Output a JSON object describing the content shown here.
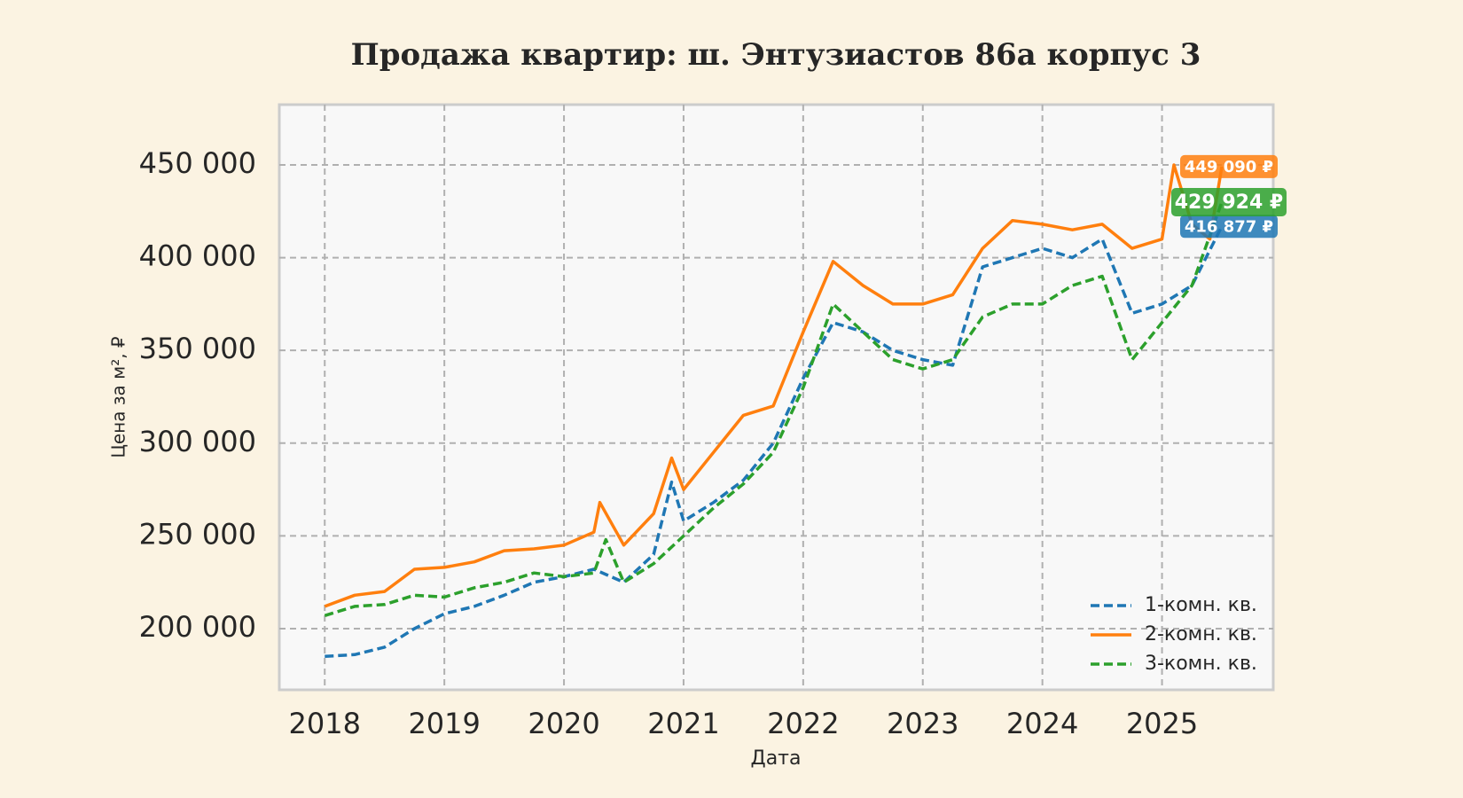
{
  "chart_data": {
    "type": "line",
    "title": "Продажа квартир: ш. Энтузиастов 86а корпус 3",
    "x_label": "Дата",
    "y_label": "Цена за м², ₽",
    "xlim": [
      2017.62,
      2025.93
    ],
    "xticks": [
      2018,
      2019,
      2020,
      2021,
      2022,
      2023,
      2024,
      2025
    ],
    "ylim": [
      167000,
      482500
    ],
    "yticks": [
      {
        "value": 200000,
        "label": "200 000"
      },
      {
        "value": 250000,
        "label": "250 000"
      },
      {
        "value": 300000,
        "label": "300 000"
      },
      {
        "value": 350000,
        "label": "350 000"
      },
      {
        "value": 400000,
        "label": "400 000"
      },
      {
        "value": 450000,
        "label": "450 000"
      }
    ],
    "grid": true,
    "legend": "lower right",
    "series": [
      {
        "name": "1-комн. кв.",
        "color": "#1f77b4",
        "linestyle": "dashed",
        "x": [
          2018,
          2018.25,
          2018.5,
          2018.75,
          2019,
          2019.25,
          2019.5,
          2019.75,
          2020,
          2020.25,
          2020.5,
          2020.75,
          2020.9,
          2021,
          2021.25,
          2021.5,
          2021.75,
          2022,
          2022.25,
          2022.5,
          2022.75,
          2023,
          2023.25,
          2023.5,
          2023.75,
          2024,
          2024.25,
          2024.5,
          2024.75,
          2025,
          2025.25,
          2025.5
        ],
        "values": [
          185000,
          186000,
          190000,
          200000,
          208000,
          212000,
          218000,
          225000,
          228000,
          232000,
          225000,
          240000,
          279000,
          258000,
          268000,
          280000,
          300000,
          335000,
          365000,
          360000,
          350000,
          345000,
          342000,
          395000,
          400000,
          405000,
          400000,
          410000,
          370000,
          375000,
          385000,
          416877
        ],
        "end_label": "416 877 ₽",
        "end_value": 416877
      },
      {
        "name": "2-комн. кв.",
        "color": "#ff7f0e",
        "linestyle": "solid",
        "x": [
          2018,
          2018.25,
          2018.5,
          2018.75,
          2019,
          2019.25,
          2019.5,
          2019.75,
          2020,
          2020.25,
          2020.3,
          2020.5,
          2020.75,
          2020.9,
          2021,
          2021.25,
          2021.5,
          2021.75,
          2022,
          2022.25,
          2022.5,
          2022.75,
          2023,
          2023.25,
          2023.5,
          2023.75,
          2024,
          2024.25,
          2024.5,
          2024.75,
          2025,
          2025.1,
          2025.25,
          2025.4,
          2025.5
        ],
        "values": [
          212000,
          218000,
          220000,
          232000,
          233000,
          236000,
          242000,
          243000,
          245000,
          252000,
          268000,
          245000,
          262000,
          292000,
          275000,
          295000,
          315000,
          320000,
          360000,
          398000,
          385000,
          375000,
          375000,
          380000,
          405000,
          420000,
          418000,
          415000,
          418000,
          405000,
          410000,
          450000,
          418000,
          410000,
          449090
        ],
        "end_label": "449 090 ₽",
        "end_value": 449090
      },
      {
        "name": "3-комн. кв.",
        "color": "#2ca02c",
        "linestyle": "dashed",
        "x": [
          2018,
          2018.25,
          2018.5,
          2018.75,
          2019,
          2019.25,
          2019.5,
          2019.75,
          2020,
          2020.25,
          2020.35,
          2020.5,
          2020.75,
          2021,
          2021.25,
          2021.5,
          2021.75,
          2022,
          2022.25,
          2022.5,
          2022.75,
          2023,
          2023.25,
          2023.5,
          2023.75,
          2024,
          2024.25,
          2024.5,
          2024.75,
          2025,
          2025.25,
          2025.5
        ],
        "values": [
          207000,
          212000,
          213000,
          218000,
          217000,
          222000,
          225000,
          230000,
          228000,
          230000,
          248000,
          225000,
          235000,
          250000,
          265000,
          278000,
          295000,
          330000,
          375000,
          360000,
          345000,
          340000,
          345000,
          368000,
          375000,
          375000,
          385000,
          390000,
          345000,
          365000,
          385000,
          429924
        ],
        "end_label": "429 924 ₽",
        "end_value": 429924
      }
    ]
  }
}
